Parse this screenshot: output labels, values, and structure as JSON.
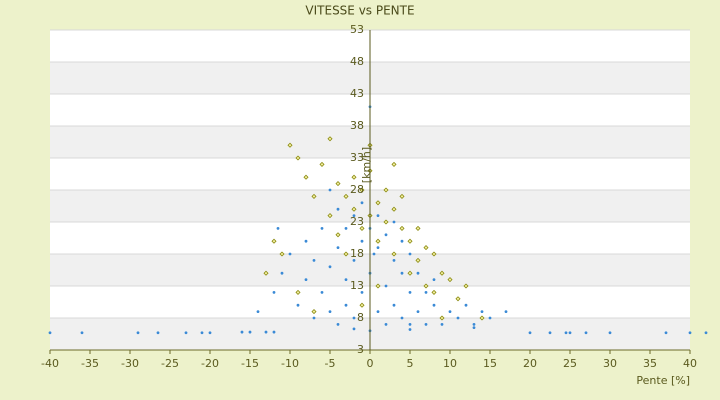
{
  "chart_data": {
    "type": "scatter",
    "title": "VITESSE vs PENTE",
    "x_label": "Pente [%]",
    "y_label": "[km/h]",
    "xlim": [
      -40,
      40
    ],
    "xticks": [
      -40,
      -35,
      -30,
      -25,
      -20,
      -15,
      -10,
      -5,
      0,
      5,
      10,
      15,
      20,
      25,
      30,
      35,
      40
    ],
    "ylim": [
      3,
      53
    ],
    "yticks": [
      3,
      8,
      13,
      18,
      23,
      28,
      33,
      38,
      43,
      48,
      53
    ],
    "grid": true,
    "series": [
      {
        "color": "#8a8a10",
        "marker": "diamond",
        "x": [
          -10,
          -9,
          -8,
          -7,
          -6,
          -5,
          -4,
          -4,
          -3,
          -3,
          -2,
          -2,
          -1,
          -1,
          0,
          0,
          1,
          1,
          2,
          2,
          3,
          3,
          4,
          4,
          5,
          5,
          6,
          6,
          7,
          7,
          8,
          8,
          9,
          10,
          11,
          12,
          -11,
          -9,
          -7,
          -12,
          -13,
          0,
          3,
          -5,
          14,
          9,
          1,
          -1
        ],
        "values": [
          35,
          33,
          30,
          27,
          32,
          24,
          29,
          21,
          27,
          18,
          25,
          30,
          22,
          28,
          24,
          31,
          26,
          20,
          28,
          23,
          25,
          18,
          22,
          27,
          20,
          15,
          22,
          17,
          19,
          13,
          18,
          12,
          15,
          14,
          11,
          13,
          18,
          12,
          9,
          20,
          15,
          35,
          32,
          36,
          8,
          8,
          13,
          10
        ]
      },
      {
        "color": "#3a8ad6",
        "marker": "circle",
        "x": [
          -40,
          -36,
          -29,
          -26.5,
          -23,
          -21,
          -20,
          -16,
          -15,
          -13,
          -12,
          20,
          22.5,
          24.5,
          25,
          27,
          30,
          37,
          40,
          42,
          -14,
          -12,
          -11,
          -11.5,
          -10,
          -9,
          -8,
          -8,
          -7,
          -7,
          -6,
          -6,
          -5,
          -5,
          -5,
          -4,
          -4,
          -4,
          -3,
          -3,
          -3,
          -2,
          -2,
          -2,
          -1,
          -1,
          -1,
          0,
          0,
          0,
          0,
          0.5,
          1,
          1,
          1,
          2,
          2,
          2,
          3,
          3,
          3,
          4,
          4,
          4,
          5,
          5,
          5,
          6,
          6,
          7,
          7,
          8,
          8,
          9,
          10,
          11,
          12,
          13,
          14,
          15,
          17,
          13,
          5,
          -2
        ],
        "values": [
          5.7,
          5.7,
          5.7,
          5.7,
          5.7,
          5.7,
          5.7,
          5.8,
          5.8,
          5.8,
          5.8,
          5.7,
          5.7,
          5.7,
          5.7,
          5.7,
          5.7,
          5.7,
          5.7,
          5.7,
          9,
          12,
          15,
          22,
          18,
          10,
          14,
          20,
          8,
          17,
          12,
          22,
          9,
          16,
          28,
          7,
          19,
          25,
          10,
          14,
          22,
          8,
          17,
          24,
          12,
          20,
          26,
          6,
          15,
          22,
          41,
          18,
          9,
          19,
          24,
          7,
          13,
          21,
          10,
          17,
          23,
          8,
          15,
          20,
          7,
          12,
          18,
          9,
          15,
          7,
          12,
          10,
          14,
          7,
          9,
          8,
          10,
          7,
          9,
          8,
          9,
          6.5,
          6.2,
          6.3
        ]
      }
    ]
  }
}
